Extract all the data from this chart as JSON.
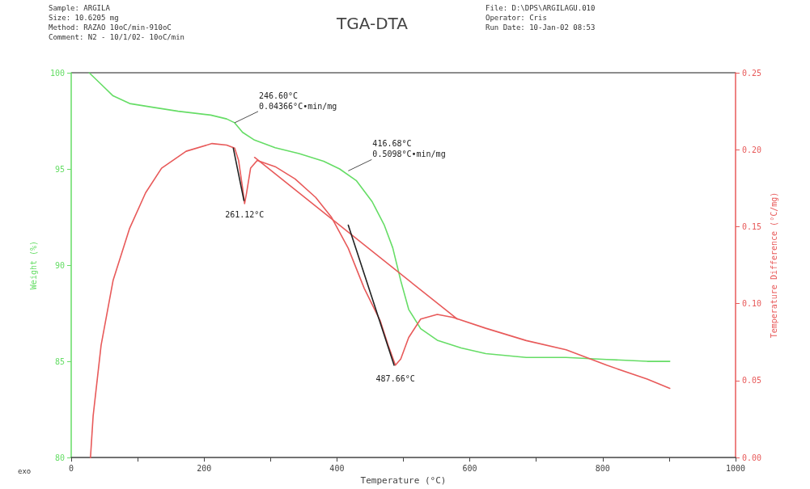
{
  "chart_data": {
    "type": "line",
    "title": "TGA-DTA",
    "xlabel": "Temperature (°C)",
    "ylabel": "Weight (%)",
    "y2label": "Temperature Difference (°C/mg)",
    "annotations": [
      "Sample: ARGILA\nSize: 10.6205 mg\nMethod: RAZAO 10oC/min-910oC\nComment: N2 - 10/1/02- 10oC/min",
      "File: D:\\DPS\\ARGILAGU.010\nOperator: Cris\nRun Date: 10-Jan-02 08:53",
      "exo",
      {
        "text": "246.60°C\n0.04366°C•min/mg",
        "x": 246,
        "y": 97.4
      },
      {
        "text": "416.68°C\n0.5098°C•min/mg",
        "x": 417,
        "y": 94.9
      },
      {
        "text": "261.12°C",
        "x": 261,
        "y": 93.3
      },
      {
        "text": "487.66°C",
        "x": 488,
        "y": 84.8
      }
    ],
    "xlim": [
      0,
      1000
    ],
    "xticks": [
      0,
      {
        "value": 100,
        "label": null
      },
      200,
      {
        "value": 300,
        "label": null
      },
      400,
      {
        "value": 500,
        "label": null
      },
      600,
      {
        "value": 700,
        "label": null
      },
      800,
      {
        "value": 900,
        "label": null
      },
      1000
    ],
    "ylim": [
      80,
      100
    ],
    "yticks": [
      80,
      85,
      90,
      95,
      100
    ],
    "y2lim": [
      0,
      0.25
    ],
    "y2ticks": [
      {
        "value": 0,
        "label": "0.00"
      },
      {
        "value": 0.05,
        "label": "0.05"
      },
      {
        "value": 0.1,
        "label": "0.10"
      },
      {
        "value": 0.15,
        "label": "0.15"
      },
      {
        "value": 0.2,
        "label": "0.20"
      },
      {
        "value": 0.25,
        "label": "0.25"
      }
    ],
    "grid": false,
    "marker": "none",
    "line_style": "solid",
    "series": [
      {
        "color": "#66dd66",
        "x": [
          27,
          45,
          63,
          88,
          124,
          161,
          210,
          234,
          246,
          258,
          276,
          307,
          343,
          380,
          404,
          429,
          453,
          471,
          484,
          496,
          508,
          526,
          551,
          587,
          624,
          685,
          745,
          806,
          867,
          901
        ],
        "values": [
          100,
          99.4,
          98.8,
          98.4,
          98.2,
          98.0,
          97.8,
          97.6,
          97.4,
          96.9,
          96.5,
          96.1,
          95.8,
          95.4,
          95.0,
          94.4,
          93.3,
          92.1,
          90.9,
          89.2,
          87.7,
          86.7,
          86.1,
          85.7,
          85.4,
          85.2,
          85.2,
          85.1,
          85.0,
          85.0
        ]
      },
      {
        "color": "#e85a5a",
        "axis": "y2",
        "x": [
          29,
          33,
          45,
          63,
          88,
          112,
          136,
          173,
          212,
          234,
          246,
          252,
          258,
          261,
          264,
          270,
          280,
          307,
          337,
          368,
          392,
          417,
          441,
          465,
          477,
          488,
          496,
          508,
          526,
          551,
          575,
          624,
          685,
          745,
          806,
          867,
          901
        ],
        "values": [
          0,
          0.027,
          0.073,
          0.115,
          0.149,
          0.172,
          0.188,
          0.199,
          0.204,
          0.203,
          0.201,
          0.193,
          0.175,
          0.165,
          0.172,
          0.188,
          0.193,
          0.189,
          0.181,
          0.169,
          0.156,
          0.136,
          0.11,
          0.089,
          0.073,
          0.06,
          0.064,
          0.078,
          0.09,
          0.093,
          0.091,
          0.084,
          0.076,
          0.07,
          0.06,
          0.051,
          0.045
        ]
      },
      {
        "color": "#e85a5a",
        "axis": "y2",
        "x": [
          276,
          581
        ],
        "values": [
          0.195,
          0.09
        ]
      },
      {
        "color": "#222222",
        "axis": "y2",
        "x": [
          244,
          260
        ],
        "values": [
          0.201,
          0.167
        ]
      },
      {
        "color": "#222222",
        "axis": "y2",
        "x": [
          417,
          486
        ],
        "values": [
          0.151,
          0.06
        ]
      }
    ]
  }
}
